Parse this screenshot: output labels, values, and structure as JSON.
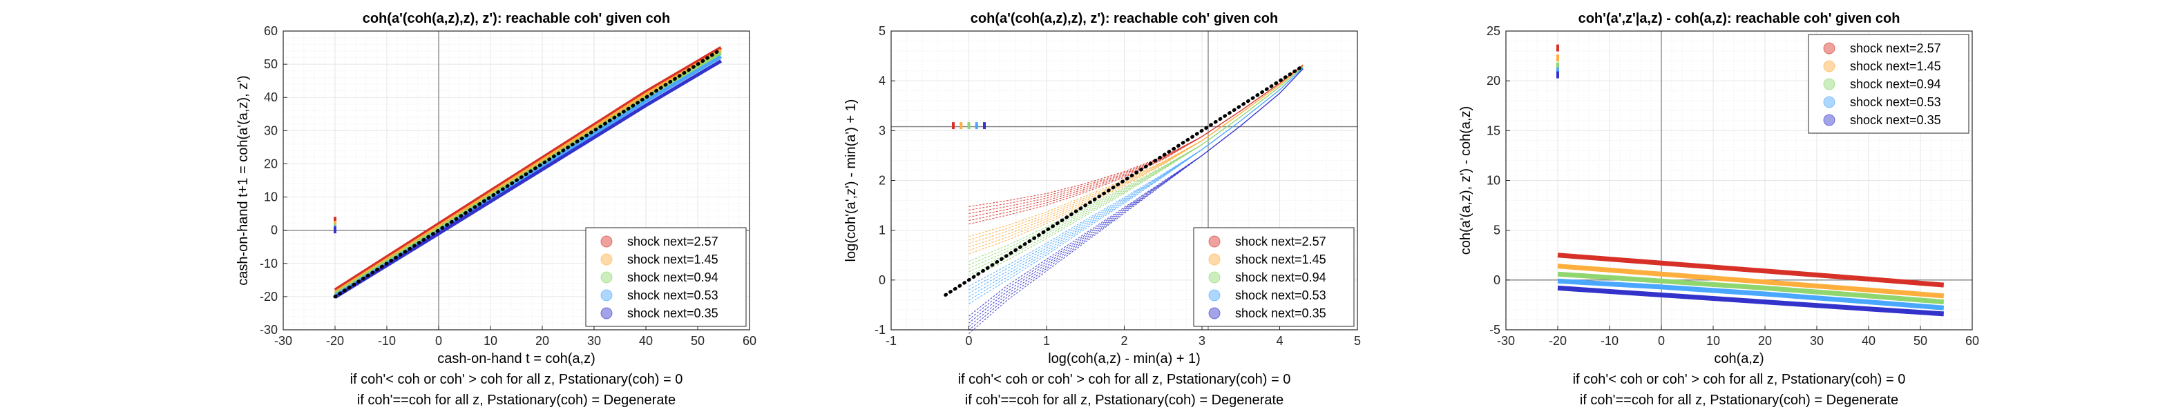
{
  "colors": {
    "series": [
      "#d73027",
      "#fdae3d",
      "#8fd66f",
      "#4aa7ff",
      "#3333cc"
    ],
    "axis": "#262626",
    "grid": "#e6e6e6",
    "zero_line": "#7f7f7f",
    "diag_line": "#000000"
  },
  "chart_data": [
    {
      "type": "line",
      "title": "coh(a'(coh(a,z),z), z'): reachable coh' given coh",
      "xlabel": "cash-on-hand t = coh(a,z)",
      "ylabel": "cash-on-hand t+1 = coh(a'(a,z), z')",
      "xlim": [
        -30,
        60
      ],
      "ylim": [
        -30,
        60
      ],
      "xticks": [
        -30,
        -20,
        -10,
        0,
        10,
        20,
        30,
        40,
        50,
        60
      ],
      "yticks": [
        -30,
        -20,
        -10,
        0,
        10,
        20,
        30,
        40,
        50,
        60
      ],
      "grid": true,
      "minor_grid": true,
      "legend_position": "bottom-right",
      "series": [
        {
          "name": "shock next=2.57",
          "x": [
            -20,
            0,
            20,
            40,
            54.5
          ],
          "y": [
            -18.0,
            1.9,
            21.8,
            41.7,
            55.0
          ],
          "outlier": [
            -20,
            3.0
          ]
        },
        {
          "name": "shock next=1.45",
          "x": [
            -20,
            0,
            20,
            40,
            54.5
          ],
          "y": [
            -18.8,
            1.1,
            21.0,
            40.9,
            54.2
          ],
          "outlier": [
            -20,
            1.8
          ]
        },
        {
          "name": "shock next=0.94",
          "x": [
            -20,
            0,
            20,
            40,
            54.5
          ],
          "y": [
            -19.3,
            0.4,
            20.2,
            40.0,
            53.4
          ],
          "outlier": [
            -20,
            0.9
          ]
        },
        {
          "name": "shock next=0.53",
          "x": [
            -20,
            0,
            20,
            40,
            54.5
          ],
          "y": [
            -19.8,
            -0.3,
            19.3,
            38.9,
            52.3
          ],
          "outlier": [
            -20,
            0.4
          ]
        },
        {
          "name": "shock next=0.35",
          "x": [
            -20,
            0,
            20,
            40,
            54.5
          ],
          "y": [
            -20.2,
            -1.0,
            18.3,
            37.6,
            51.0
          ],
          "outlier": [
            -20,
            0.1
          ]
        }
      ],
      "reference_line": {
        "style": "dotted",
        "x": [
          -20,
          54.5
        ],
        "y": [
          -20,
          54.5
        ]
      },
      "notes": [
        "if coh'< coh or coh' > coh for all z, Pstationary(coh) = 0",
        "if coh'==coh for all z, Pstationary(coh) = Degenerate"
      ]
    },
    {
      "type": "line",
      "title": "coh(a'(coh(a,z),z), z'): reachable coh' given coh",
      "xlabel": "log(coh(a,z) - min(a) + 1)",
      "ylabel": "log(coh'(a',z') - min(a') + 1)",
      "xlim": [
        -1,
        5
      ],
      "ylim": [
        -1,
        5
      ],
      "xticks": [
        -1,
        0,
        1,
        2,
        3,
        4,
        5
      ],
      "yticks": [
        -1,
        0,
        1,
        2,
        3,
        4,
        5
      ],
      "crosshair": [
        3.08,
        3.08
      ],
      "grid": true,
      "minor_grid": true,
      "legend_position": "bottom-right",
      "series": [
        {
          "name": "shock next=2.57",
          "x": [
            0.0,
            0.5,
            1.0,
            1.5,
            2.0,
            2.5,
            3.0,
            3.5,
            4.0,
            4.3
          ],
          "y": [
            1.3,
            1.45,
            1.62,
            1.85,
            2.12,
            2.45,
            2.88,
            3.4,
            3.95,
            4.32
          ],
          "outlier": [
            -0.2,
            3.1
          ]
        },
        {
          "name": "shock next=1.45",
          "x": [
            0.0,
            0.5,
            1.0,
            1.5,
            2.0,
            2.5,
            3.0,
            3.5,
            4.0,
            4.3
          ],
          "y": [
            0.7,
            0.95,
            1.25,
            1.6,
            1.95,
            2.35,
            2.8,
            3.35,
            3.92,
            4.3
          ],
          "outlier": [
            -0.1,
            3.1
          ]
        },
        {
          "name": "shock next=0.94",
          "x": [
            0.0,
            0.5,
            1.0,
            1.5,
            2.0,
            2.5,
            3.0,
            3.5,
            4.0,
            4.3
          ],
          "y": [
            0.2,
            0.55,
            0.95,
            1.38,
            1.8,
            2.25,
            2.72,
            3.28,
            3.88,
            4.28
          ],
          "outlier": [
            0.0,
            3.1
          ]
        },
        {
          "name": "shock next=0.53",
          "x": [
            0.0,
            0.5,
            1.0,
            1.5,
            2.0,
            2.5,
            3.0,
            3.5,
            4.0,
            4.3
          ],
          "y": [
            -0.3,
            0.15,
            0.62,
            1.12,
            1.6,
            2.1,
            2.62,
            3.2,
            3.82,
            4.26
          ],
          "outlier": [
            0.1,
            3.1
          ]
        },
        {
          "name": "shock next=0.35",
          "x": [
            0.0,
            0.5,
            1.0,
            1.5,
            2.0,
            2.5,
            3.0,
            3.5,
            4.0,
            4.3
          ],
          "y": [
            -0.9,
            -0.25,
            0.3,
            0.85,
            1.4,
            1.95,
            2.5,
            3.1,
            3.75,
            4.24
          ],
          "outlier": [
            0.2,
            3.1
          ]
        }
      ],
      "reference_line": {
        "style": "dotted",
        "x": [
          -0.3,
          4.3
        ],
        "y": [
          -0.3,
          4.3
        ]
      },
      "notes": [
        "if coh'< coh or coh' > coh for all z, Pstationary(coh) = 0",
        "if coh'==coh for all z, Pstationary(coh) = Degenerate"
      ]
    },
    {
      "type": "line",
      "title": "coh'(a',z'|a,z) - coh(a,z): reachable coh' given coh",
      "xlabel": "coh(a,z)",
      "ylabel": "coh(a'(a,z), z') - coh(a,z)",
      "xlim": [
        -30,
        60
      ],
      "ylim": [
        -5,
        25
      ],
      "xticks": [
        -30,
        -20,
        -10,
        0,
        10,
        20,
        30,
        40,
        50,
        60
      ],
      "yticks": [
        -5,
        0,
        5,
        10,
        15,
        20,
        25
      ],
      "grid": true,
      "minor_grid": true,
      "legend_position": "top-right",
      "series": [
        {
          "name": "shock next=2.57",
          "x": [
            -20,
            0,
            20,
            40,
            54.5
          ],
          "y": [
            2.5,
            1.7,
            0.9,
            0.1,
            -0.5
          ],
          "outlier": [
            -20,
            23.3
          ]
        },
        {
          "name": "shock next=1.45",
          "x": [
            -20,
            0,
            20,
            40,
            54.5
          ],
          "y": [
            1.4,
            0.6,
            -0.2,
            -1.0,
            -1.6
          ],
          "outlier": [
            -20,
            22.3
          ]
        },
        {
          "name": "shock next=0.94",
          "x": [
            -20,
            0,
            20,
            40,
            54.5
          ],
          "y": [
            0.6,
            -0.1,
            -0.8,
            -1.6,
            -2.2
          ],
          "outlier": [
            -20,
            21.5
          ]
        },
        {
          "name": "shock next=0.53",
          "x": [
            -20,
            0,
            20,
            40,
            54.5
          ],
          "y": [
            -0.1,
            -0.7,
            -1.4,
            -2.2,
            -2.8
          ],
          "outlier": [
            -20,
            21.0
          ]
        },
        {
          "name": "shock next=0.35",
          "x": [
            -20,
            0,
            20,
            40,
            54.5
          ],
          "y": [
            -0.8,
            -1.5,
            -2.2,
            -2.9,
            -3.4
          ],
          "outlier": [
            -20,
            20.6
          ]
        }
      ],
      "notes": [
        "if coh'< coh or coh' > coh for all z, Pstationary(coh) = 0",
        "if coh'==coh for all z, Pstationary(coh) = Degenerate"
      ]
    }
  ]
}
